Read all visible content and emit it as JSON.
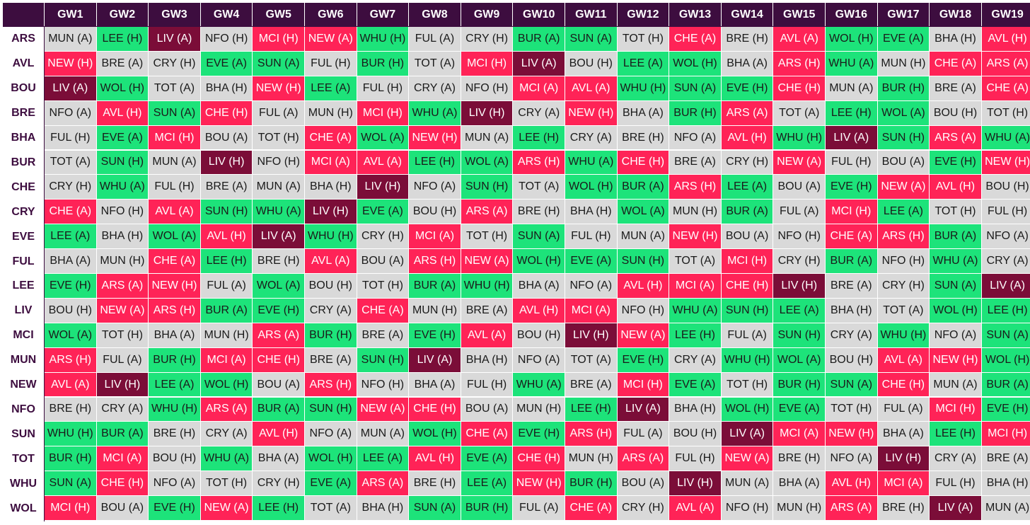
{
  "chart_data": {
    "type": "table",
    "title": "",
    "columns": [
      "GW1",
      "GW2",
      "GW3",
      "GW4",
      "GW5",
      "GW6",
      "GW7",
      "GW8",
      "GW9",
      "GW10",
      "GW11",
      "GW12",
      "GW13",
      "GW14",
      "GW15",
      "GW16",
      "GW17",
      "GW18",
      "GW19"
    ],
    "rows": [
      {
        "team": "ARS",
        "fixtures": [
          "MUN (A)",
          "LEE (H)",
          "LIV (A)",
          "NFO (H)",
          "MCI (H)",
          "NEW (A)",
          "WHU (H)",
          "FUL (A)",
          "CRY (H)",
          "BUR (A)",
          "SUN (A)",
          "TOT (H)",
          "CHE (A)",
          "BRE (H)",
          "AVL (A)",
          "WOL (H)",
          "EVE (A)",
          "BHA (H)",
          "AVL (H)"
        ]
      },
      {
        "team": "AVL",
        "fixtures": [
          "NEW (H)",
          "BRE (A)",
          "CRY (H)",
          "EVE (A)",
          "SUN (A)",
          "FUL (H)",
          "BUR (H)",
          "TOT (A)",
          "MCI (H)",
          "LIV (A)",
          "BOU (H)",
          "LEE (A)",
          "WOL (H)",
          "BHA (A)",
          "ARS (H)",
          "WHU (A)",
          "MUN (H)",
          "CHE (A)",
          "ARS (A)"
        ]
      },
      {
        "team": "BOU",
        "fixtures": [
          "LIV (A)",
          "WOL (H)",
          "TOT (A)",
          "BHA (H)",
          "NEW (H)",
          "LEE (A)",
          "FUL (H)",
          "CRY (A)",
          "NFO (H)",
          "MCI (A)",
          "AVL (A)",
          "WHU (H)",
          "SUN (A)",
          "EVE (H)",
          "CHE (H)",
          "MUN (A)",
          "BUR (H)",
          "BRE (A)",
          "CHE (A)"
        ]
      },
      {
        "team": "BRE",
        "fixtures": [
          "NFO (A)",
          "AVL (H)",
          "SUN (A)",
          "CHE (H)",
          "FUL (A)",
          "MUN (H)",
          "MCI (H)",
          "WHU (A)",
          "LIV (H)",
          "CRY (A)",
          "NEW (H)",
          "BHA (A)",
          "BUR (H)",
          "ARS (A)",
          "TOT (A)",
          "LEE (H)",
          "WOL (A)",
          "BOU (H)",
          "TOT (H)"
        ]
      },
      {
        "team": "BHA",
        "fixtures": [
          "FUL (H)",
          "EVE (A)",
          "MCI (H)",
          "BOU (A)",
          "TOT (H)",
          "CHE (A)",
          "WOL (A)",
          "NEW (H)",
          "MUN (A)",
          "LEE (H)",
          "CRY (A)",
          "BRE (H)",
          "NFO (A)",
          "AVL (H)",
          "WHU (H)",
          "LIV (A)",
          "SUN (H)",
          "ARS (A)",
          "WHU (A)"
        ]
      },
      {
        "team": "BUR",
        "fixtures": [
          "TOT (A)",
          "SUN (H)",
          "MUN (A)",
          "LIV (H)",
          "NFO (H)",
          "MCI (A)",
          "AVL (A)",
          "LEE (H)",
          "WOL (A)",
          "ARS (H)",
          "WHU (A)",
          "CHE (H)",
          "BRE (A)",
          "CRY (H)",
          "NEW (A)",
          "FUL (H)",
          "BOU (A)",
          "EVE (H)",
          "NEW (H)"
        ]
      },
      {
        "team": "CHE",
        "fixtures": [
          "CRY (H)",
          "WHU (A)",
          "FUL (H)",
          "BRE (A)",
          "MUN (A)",
          "BHA (H)",
          "LIV (H)",
          "NFO (A)",
          "SUN (H)",
          "TOT (A)",
          "WOL (H)",
          "BUR (A)",
          "ARS (H)",
          "LEE (A)",
          "BOU (A)",
          "EVE (H)",
          "NEW (A)",
          "AVL (H)",
          "BOU (H)"
        ]
      },
      {
        "team": "CRY",
        "fixtures": [
          "CHE (A)",
          "NFO (H)",
          "AVL (A)",
          "SUN (H)",
          "WHU (A)",
          "LIV (H)",
          "EVE (A)",
          "BOU (H)",
          "ARS (A)",
          "BRE (H)",
          "BHA (H)",
          "WOL (A)",
          "MUN (H)",
          "BUR (A)",
          "FUL (A)",
          "MCI (H)",
          "LEE (A)",
          "TOT (H)",
          "FUL (H)"
        ]
      },
      {
        "team": "EVE",
        "fixtures": [
          "LEE (A)",
          "BHA (H)",
          "WOL (A)",
          "AVL (H)",
          "LIV (A)",
          "WHU (H)",
          "CRY (H)",
          "MCI (A)",
          "TOT (H)",
          "SUN (A)",
          "FUL (H)",
          "MUN (A)",
          "NEW (H)",
          "BOU (A)",
          "NFO (H)",
          "CHE (A)",
          "ARS (H)",
          "BUR (A)",
          "NFO (A)"
        ]
      },
      {
        "team": "FUL",
        "fixtures": [
          "BHA (A)",
          "MUN (H)",
          "CHE (A)",
          "LEE (H)",
          "BRE (H)",
          "AVL (A)",
          "BOU (A)",
          "ARS (H)",
          "NEW (A)",
          "WOL (H)",
          "EVE (A)",
          "SUN (H)",
          "TOT (A)",
          "MCI (H)",
          "CRY (H)",
          "BUR (A)",
          "NFO (H)",
          "WHU (A)",
          "CRY (A)"
        ]
      },
      {
        "team": "LEE",
        "fixtures": [
          "EVE (H)",
          "ARS (A)",
          "NEW (H)",
          "FUL (A)",
          "WOL (A)",
          "BOU (H)",
          "TOT (H)",
          "BUR (A)",
          "WHU (H)",
          "BHA (A)",
          "NFO (A)",
          "AVL (H)",
          "MCI (A)",
          "CHE (H)",
          "LIV (H)",
          "BRE (A)",
          "CRY (H)",
          "SUN (A)",
          "LIV (A)"
        ]
      },
      {
        "team": "LIV",
        "fixtures": [
          "BOU (H)",
          "NEW (A)",
          "ARS (H)",
          "BUR (A)",
          "EVE (H)",
          "CRY (A)",
          "CHE (A)",
          "MUN (H)",
          "BRE (A)",
          "AVL (H)",
          "MCI (A)",
          "NFO (H)",
          "WHU (A)",
          "SUN (H)",
          "LEE (A)",
          "BHA (H)",
          "TOT (A)",
          "WOL (H)",
          "LEE (H)"
        ]
      },
      {
        "team": "MCI",
        "fixtures": [
          "WOL (A)",
          "TOT (H)",
          "BHA (A)",
          "MUN (H)",
          "ARS (A)",
          "BUR (H)",
          "BRE (A)",
          "EVE (H)",
          "AVL (A)",
          "BOU (H)",
          "LIV (H)",
          "NEW (A)",
          "LEE (H)",
          "FUL (A)",
          "SUN (H)",
          "CRY (A)",
          "WHU (H)",
          "NFO (A)",
          "SUN (A)"
        ]
      },
      {
        "team": "MUN",
        "fixtures": [
          "ARS (H)",
          "FUL (A)",
          "BUR (H)",
          "MCI (A)",
          "CHE (H)",
          "BRE (A)",
          "SUN (H)",
          "LIV (A)",
          "BHA (H)",
          "NFO (A)",
          "TOT (A)",
          "EVE (H)",
          "CRY (A)",
          "WHU (H)",
          "WOL (A)",
          "BOU (H)",
          "AVL (A)",
          "NEW (H)",
          "WOL (H)"
        ]
      },
      {
        "team": "NEW",
        "fixtures": [
          "AVL (A)",
          "LIV (H)",
          "LEE (A)",
          "WOL (H)",
          "BOU (A)",
          "ARS (H)",
          "NFO (H)",
          "BHA (A)",
          "FUL (H)",
          "WHU (A)",
          "BRE (A)",
          "MCI (H)",
          "EVE (A)",
          "TOT (H)",
          "BUR (H)",
          "SUN (A)",
          "CHE (H)",
          "MUN (A)",
          "BUR (A)"
        ]
      },
      {
        "team": "NFO",
        "fixtures": [
          "BRE (H)",
          "CRY (A)",
          "WHU (H)",
          "ARS (A)",
          "BUR (A)",
          "SUN (H)",
          "NEW (A)",
          "CHE (H)",
          "BOU (A)",
          "MUN (H)",
          "LEE (H)",
          "LIV (A)",
          "BHA (H)",
          "WOL (H)",
          "EVE (A)",
          "TOT (H)",
          "FUL (A)",
          "MCI (H)",
          "EVE (H)"
        ]
      },
      {
        "team": "SUN",
        "fixtures": [
          "WHU (H)",
          "BUR (A)",
          "BRE (H)",
          "CRY (A)",
          "AVL (H)",
          "NFO (A)",
          "MUN (A)",
          "WOL (H)",
          "CHE (A)",
          "EVE (H)",
          "ARS (H)",
          "FUL (A)",
          "BOU (H)",
          "LIV (A)",
          "MCI (A)",
          "NEW (H)",
          "BHA (A)",
          "LEE (H)",
          "MCI (H)"
        ]
      },
      {
        "team": "TOT",
        "fixtures": [
          "BUR (H)",
          "MCI (A)",
          "BOU (H)",
          "WHU (A)",
          "BHA (A)",
          "WOL (H)",
          "LEE (A)",
          "AVL (H)",
          "EVE (A)",
          "CHE (H)",
          "MUN (H)",
          "ARS (A)",
          "FUL (H)",
          "NEW (A)",
          "BRE (H)",
          "NFO (A)",
          "LIV (H)",
          "CRY (A)",
          "BRE (A)"
        ]
      },
      {
        "team": "WHU",
        "fixtures": [
          "SUN (A)",
          "CHE (H)",
          "NFO (A)",
          "TOT (H)",
          "CRY (H)",
          "EVE (A)",
          "ARS (A)",
          "BRE (H)",
          "LEE (A)",
          "NEW (H)",
          "BUR (H)",
          "BOU (A)",
          "LIV (H)",
          "MUN (A)",
          "BHA (A)",
          "AVL (H)",
          "MCI (A)",
          "FUL (H)",
          "BHA (H)"
        ]
      },
      {
        "team": "WOL",
        "fixtures": [
          "MCI (H)",
          "BOU (A)",
          "EVE (H)",
          "NEW (A)",
          "LEE (H)",
          "TOT (A)",
          "BHA (H)",
          "SUN (A)",
          "BUR (H)",
          "FUL (A)",
          "CHE (A)",
          "CRY (H)",
          "AVL (A)",
          "NFO (H)",
          "MUN (H)",
          "ARS (A)",
          "BRE (H)",
          "LIV (A)",
          "MUN (A)"
        ]
      }
    ],
    "difficulty_colors": {
      "easy": "#1de37a",
      "medium": "#d9d9d9",
      "hard": "#ff2357",
      "very_hard": "#7b0d38"
    },
    "team_difficulty": {
      "LIV": "very_hard",
      "MCI": "hard",
      "ARS": "hard",
      "CHE": "hard",
      "AVL": "hard",
      "NEW": "hard",
      "LEE": "easy",
      "SUN": "easy",
      "BUR": "easy",
      "WHU": "easy",
      "WOL": "easy",
      "EVE": "easy",
      "MUN": "medium",
      "NFO": "medium",
      "FUL": "medium",
      "CRY": "medium",
      "TOT": "medium",
      "BOU": "medium",
      "BRE": "medium",
      "BHA": "medium"
    },
    "header_color": "#3d0d3f",
    "team_label_color": "#3d0d3f"
  }
}
